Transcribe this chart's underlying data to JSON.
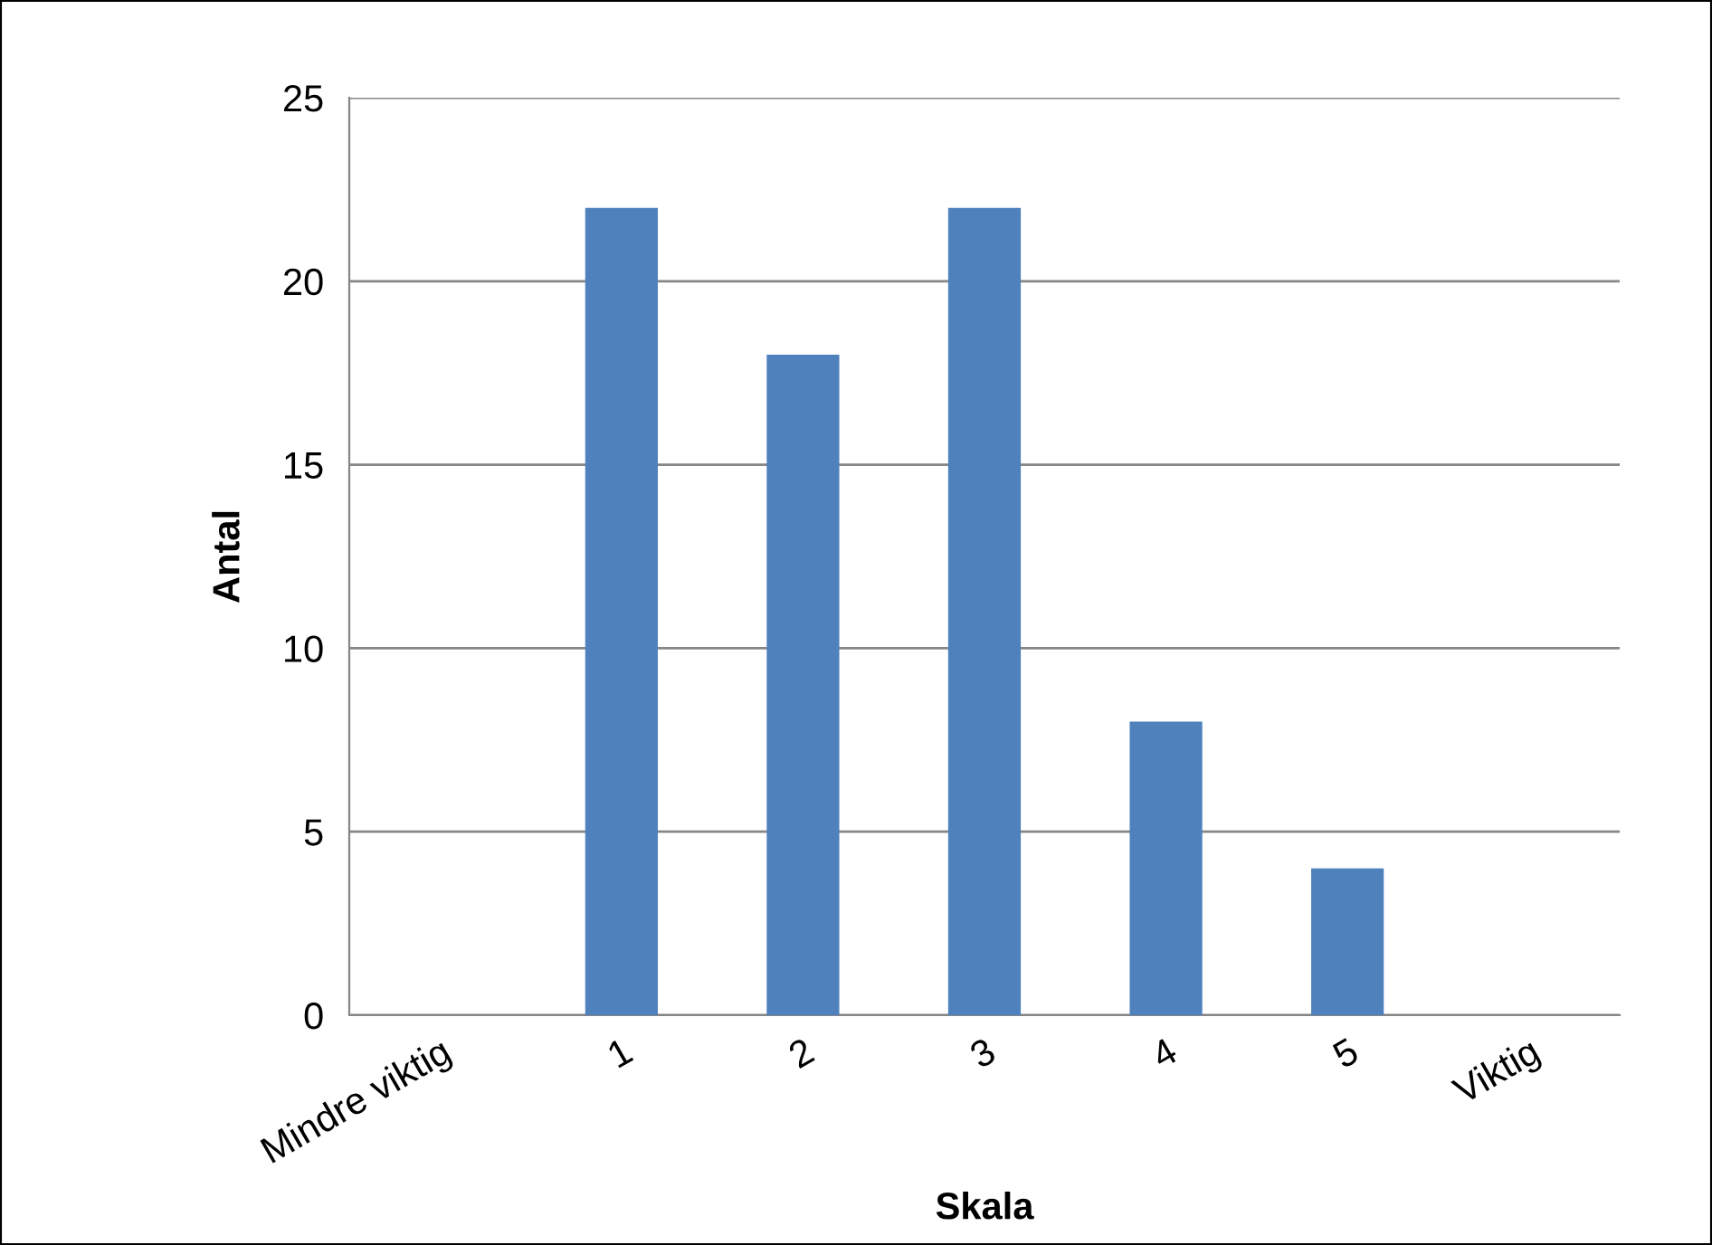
{
  "chart_data": {
    "type": "bar",
    "xlabel": "Skala",
    "ylabel": "Antal",
    "categories": [
      "Mindre viktig",
      "1",
      "2",
      "3",
      "4",
      "5",
      "Viktig"
    ],
    "values": [
      null,
      22,
      18,
      22,
      8,
      4,
      null
    ],
    "color": "#4f81bd",
    "ylim": [
      0,
      25
    ],
    "yticks": [
      0,
      5,
      10,
      15,
      20,
      25
    ],
    "grid": "y",
    "legend": false
  }
}
